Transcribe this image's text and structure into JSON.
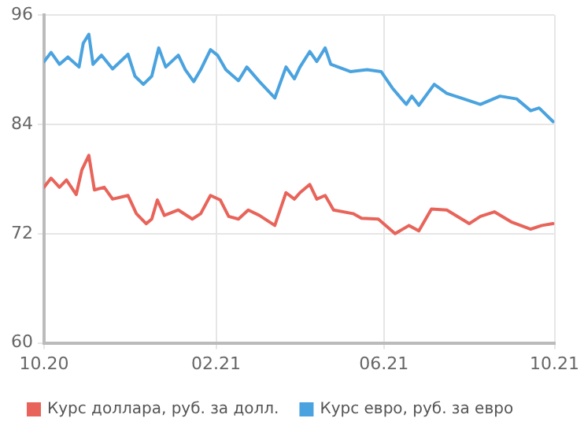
{
  "chart_data": {
    "type": "line",
    "xlim": [
      "2020-10-01",
      "2021-10-01"
    ],
    "xticks": [
      {
        "value": "2020-10-01",
        "label": "10.20"
      },
      {
        "value": "2021-02-01",
        "label": "02.21"
      },
      {
        "value": "2021-06-01",
        "label": "06.21"
      },
      {
        "value": "2021-10-01",
        "label": "10.21"
      }
    ],
    "ylim": [
      60,
      96
    ],
    "yticks": [
      60,
      72,
      84,
      96
    ],
    "grid": true,
    "legend": "bottom",
    "marker": "none",
    "line_style": "solid",
    "series": [
      {
        "name": "Курс доллара, руб. за долл.",
        "color": "#e8645a",
        "x": [
          "2020-10-01",
          "2020-10-06",
          "2020-10-12",
          "2020-10-17",
          "2020-10-24",
          "2020-10-28",
          "2020-11-02",
          "2020-11-06",
          "2020-11-13",
          "2020-11-19",
          "2020-11-30",
          "2020-12-06",
          "2020-12-13",
          "2020-12-17",
          "2020-12-21",
          "2020-12-26",
          "2021-01-05",
          "2021-01-15",
          "2021-01-21",
          "2021-01-28",
          "2021-02-04",
          "2021-02-10",
          "2021-02-17",
          "2021-02-24",
          "2021-03-04",
          "2021-03-15",
          "2021-03-23",
          "2021-03-29",
          "2021-04-02",
          "2021-04-09",
          "2021-04-14",
          "2021-04-20",
          "2021-04-26",
          "2021-05-10",
          "2021-05-16",
          "2021-05-28",
          "2021-06-09",
          "2021-06-19",
          "2021-06-26",
          "2021-07-05",
          "2021-07-16",
          "2021-08-01",
          "2021-08-09",
          "2021-08-19",
          "2021-08-31",
          "2021-09-14",
          "2021-09-22",
          "2021-09-30"
        ],
        "values": [
          77.1,
          78.1,
          77.1,
          77.9,
          76.3,
          79.0,
          80.6,
          76.8,
          77.1,
          75.8,
          76.2,
          74.2,
          73.1,
          73.6,
          75.7,
          74.0,
          74.6,
          73.6,
          74.2,
          76.2,
          75.7,
          73.9,
          73.6,
          74.6,
          74.0,
          72.9,
          76.5,
          75.8,
          76.5,
          77.4,
          75.8,
          76.2,
          74.6,
          74.2,
          73.7,
          73.6,
          72.0,
          72.9,
          72.3,
          74.7,
          74.6,
          73.1,
          73.9,
          74.4,
          73.3,
          72.5,
          72.9,
          73.1
        ]
      },
      {
        "name": "Курс евро, руб. за евро",
        "color": "#4aa3df",
        "x": [
          "2020-10-01",
          "2020-10-06",
          "2020-10-12",
          "2020-10-18",
          "2020-10-26",
          "2020-10-29",
          "2020-11-02",
          "2020-11-05",
          "2020-11-11",
          "2020-11-19",
          "2020-11-30",
          "2020-12-05",
          "2020-12-11",
          "2020-12-17",
          "2020-12-22",
          "2020-12-27",
          "2021-01-05",
          "2021-01-10",
          "2021-01-16",
          "2021-01-21",
          "2021-01-28",
          "2021-02-02",
          "2021-02-08",
          "2021-02-17",
          "2021-02-23",
          "2021-03-04",
          "2021-03-15",
          "2021-03-23",
          "2021-03-29",
          "2021-04-02",
          "2021-04-09",
          "2021-04-14",
          "2021-04-20",
          "2021-04-24",
          "2021-05-08",
          "2021-05-20",
          "2021-05-30",
          "2021-06-07",
          "2021-06-17",
          "2021-06-21",
          "2021-06-26",
          "2021-07-07",
          "2021-07-16",
          "2021-07-26",
          "2021-08-09",
          "2021-08-23",
          "2021-09-04",
          "2021-09-14",
          "2021-09-20",
          "2021-09-30"
        ],
        "values": [
          90.9,
          91.9,
          90.6,
          91.4,
          90.3,
          92.9,
          93.9,
          90.6,
          91.6,
          90.1,
          91.7,
          89.3,
          88.4,
          89.3,
          92.4,
          90.3,
          91.6,
          90.0,
          88.7,
          90.0,
          92.2,
          91.6,
          90.0,
          88.8,
          90.3,
          88.7,
          86.9,
          90.3,
          89.0,
          90.3,
          92.0,
          90.9,
          92.4,
          90.6,
          89.8,
          90.0,
          89.8,
          88.0,
          86.2,
          87.1,
          86.1,
          88.4,
          87.4,
          86.9,
          86.2,
          87.1,
          86.8,
          85.5,
          85.8,
          84.3
        ]
      }
    ]
  }
}
